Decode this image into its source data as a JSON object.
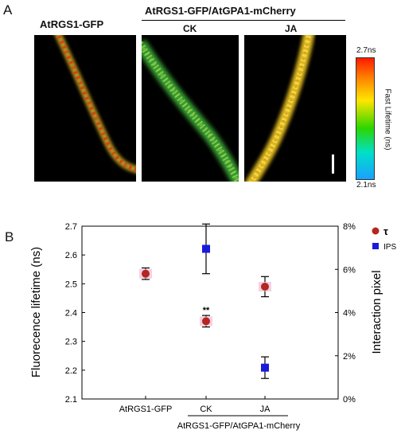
{
  "panel_a": {
    "letter": "A",
    "header_single": "AtRGS1-GFP",
    "header_group": "AtRGS1-GFP/AtGPA1-mCherry",
    "sub_ck": "CK",
    "sub_ja": "JA",
    "colorbar": {
      "max_label": "2.7ns",
      "min_label": "2.1ns",
      "title": "Fast Lifetime (ns)"
    }
  },
  "panel_b": {
    "letter": "B",
    "group_label": "AtRGS1-GFP/AtGPA1-mCherry",
    "significance": "**"
  },
  "chart_data": {
    "type": "scatter",
    "categories": [
      "AtRGS1-GFP",
      "CK",
      "JA"
    ],
    "ylabel": "Fluorecence lifetime (ns)",
    "y2label": "Interaction pixel",
    "ylim": [
      2.1,
      2.7
    ],
    "yticks": [
      "2.1",
      "2.2",
      "2.3",
      "2.4",
      "2.5",
      "2.6",
      "2.7"
    ],
    "y2lim": [
      0,
      8
    ],
    "y2ticks": [
      "0%",
      "2%",
      "4%",
      "6%",
      "8%"
    ],
    "legend_position": "top-right",
    "series": [
      {
        "name": "τ",
        "axis": "left",
        "marker": "circle",
        "color": "#b5261e",
        "x": [
          0,
          1,
          2
        ],
        "values": [
          2.535,
          2.37,
          2.49
        ],
        "errors": [
          0.02,
          0.02,
          0.035
        ]
      },
      {
        "name": "IPS",
        "axis": "right",
        "marker": "square",
        "color": "#1a1adb",
        "x": [
          1,
          2
        ],
        "values": [
          6.95,
          1.45
        ],
        "errors": [
          1.15,
          0.5
        ]
      }
    ]
  }
}
